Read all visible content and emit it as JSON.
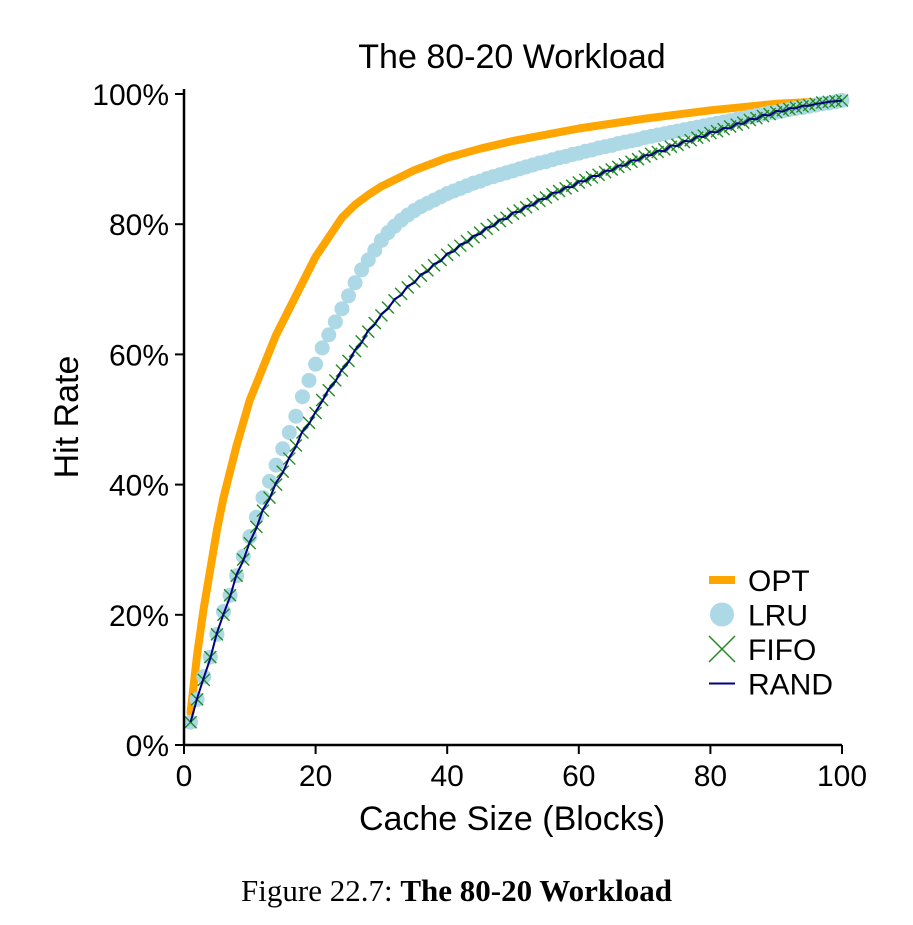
{
  "caption": {
    "prefix": "Figure 22.7:",
    "title": "The 80-20 Workload"
  },
  "colors": {
    "OPT": "#ffa500",
    "LRU": "#add8e6",
    "FIFO": "#228b22",
    "RAND": "#000080"
  },
  "chart_data": {
    "type": "line",
    "title": "The 80-20 Workload",
    "xlabel": "Cache Size (Blocks)",
    "ylabel": "Hit Rate",
    "xlim": [
      0,
      100
    ],
    "ylim": [
      0,
      100
    ],
    "x_ticks": [
      "0",
      "20",
      "40",
      "60",
      "80",
      "100"
    ],
    "y_ticks": [
      "0%",
      "20%",
      "40%",
      "60%",
      "80%",
      "100%"
    ],
    "legend_position": "bottom-right",
    "grid": false,
    "series": [
      {
        "name": "OPT",
        "marker": "line",
        "x": [
          1,
          2,
          3,
          4,
          5,
          6,
          8,
          10,
          12,
          14,
          16,
          18,
          20,
          22,
          24,
          26,
          28,
          30,
          35,
          40,
          45,
          50,
          60,
          70,
          80,
          90,
          100
        ],
        "y": [
          5,
          14,
          21,
          27,
          33,
          38,
          46,
          53,
          58,
          63,
          67,
          71,
          75,
          78,
          81,
          83,
          84.5,
          85.8,
          88.3,
          90.2,
          91.6,
          92.8,
          94.7,
          96.2,
          97.5,
          98.5,
          99
        ]
      },
      {
        "name": "LRU",
        "marker": "circle",
        "x": [
          1,
          2,
          3,
          4,
          5,
          6,
          7,
          8,
          9,
          10,
          11,
          12,
          13,
          14,
          15,
          16,
          17,
          18,
          19,
          20,
          21,
          22,
          23,
          24,
          25,
          26,
          27,
          28,
          29,
          30,
          31,
          32,
          33,
          34,
          35,
          36,
          37,
          38,
          39,
          40,
          41,
          42,
          43,
          44,
          45,
          46,
          47,
          48,
          49,
          50,
          51,
          52,
          53,
          54,
          55,
          56,
          57,
          58,
          59,
          60,
          61,
          62,
          63,
          64,
          65,
          66,
          67,
          68,
          69,
          70,
          71,
          72,
          73,
          74,
          75,
          76,
          77,
          78,
          79,
          80,
          81,
          82,
          83,
          84,
          85,
          86,
          87,
          88,
          89,
          90,
          91,
          92,
          93,
          94,
          95,
          96,
          97,
          98,
          99,
          100
        ],
        "y": [
          3.5,
          7,
          10.5,
          13.5,
          17,
          20.5,
          23,
          26,
          29,
          32,
          35,
          38,
          40.5,
          43,
          45.5,
          48,
          50.5,
          53.5,
          56,
          58.5,
          61,
          63,
          65,
          67,
          69,
          71,
          73,
          74.5,
          76,
          77.5,
          78.7,
          79.7,
          80.6,
          81.4,
          82.1,
          82.7,
          83.2,
          83.7,
          84.2,
          84.7,
          85.1,
          85.5,
          85.9,
          86.3,
          86.6,
          87,
          87.3,
          87.6,
          87.9,
          88.2,
          88.5,
          88.8,
          89.1,
          89.4,
          89.6,
          89.9,
          90.2,
          90.4,
          90.7,
          90.9,
          91.2,
          91.4,
          91.7,
          91.9,
          92.1,
          92.4,
          92.6,
          92.8,
          93,
          93.3,
          93.5,
          93.7,
          93.9,
          94.1,
          94.3,
          94.5,
          94.7,
          94.9,
          95.1,
          95.3,
          95.5,
          95.7,
          95.9,
          96.1,
          96.3,
          96.5,
          96.7,
          96.9,
          97.1,
          97.2,
          97.4,
          97.6,
          97.8,
          97.9,
          98.1,
          98.3,
          98.5,
          98.6,
          98.8,
          99
        ]
      },
      {
        "name": "FIFO",
        "marker": "x",
        "x": [
          1,
          2,
          3,
          4,
          5,
          6,
          7,
          8,
          9,
          10,
          11,
          12,
          13,
          14,
          15,
          16,
          17,
          18,
          19,
          20,
          21,
          22,
          23,
          24,
          25,
          26,
          27,
          28,
          29,
          30,
          31,
          32,
          33,
          34,
          35,
          36,
          37,
          38,
          39,
          40,
          41,
          42,
          43,
          44,
          45,
          46,
          47,
          48,
          49,
          50,
          51,
          52,
          53,
          54,
          55,
          56,
          57,
          58,
          59,
          60,
          61,
          62,
          63,
          64,
          65,
          66,
          67,
          68,
          69,
          70,
          71,
          72,
          73,
          74,
          75,
          76,
          77,
          78,
          79,
          80,
          81,
          82,
          83,
          84,
          85,
          86,
          87,
          88,
          89,
          90,
          91,
          92,
          93,
          94,
          95,
          96,
          97,
          98,
          99,
          100
        ],
        "y": [
          3.5,
          7,
          10,
          13.5,
          17,
          20,
          23,
          26,
          28.5,
          31,
          33.5,
          36,
          38,
          40,
          42,
          44,
          46,
          48,
          49.5,
          51,
          53,
          54.5,
          56,
          57.5,
          59,
          60.5,
          62,
          63.5,
          64.8,
          66,
          67.2,
          68.3,
          69.3,
          70.3,
          71.2,
          72.1,
          72.9,
          73.7,
          74.5,
          75.3,
          76,
          76.7,
          77.4,
          78,
          78.7,
          79.3,
          79.9,
          80.5,
          81,
          81.6,
          82.1,
          82.6,
          83.1,
          83.6,
          84.1,
          84.6,
          85.1,
          85.5,
          85.9,
          86.4,
          86.8,
          87.2,
          87.6,
          88,
          88.4,
          88.8,
          89.2,
          89.6,
          90,
          90.4,
          90.8,
          91.1,
          91.5,
          91.9,
          92.2,
          92.6,
          92.9,
          93.3,
          93.6,
          94,
          94.3,
          94.6,
          95,
          95.3,
          95.6,
          96,
          96.3,
          96.6,
          96.9,
          97.2,
          97.5,
          97.7,
          97.9,
          98.1,
          98.3,
          98.5,
          98.7,
          98.8,
          98.9,
          99
        ]
      },
      {
        "name": "RAND",
        "marker": "line",
        "x": [
          1,
          2,
          3,
          4,
          5,
          6,
          7,
          8,
          9,
          10,
          11,
          12,
          13,
          14,
          15,
          16,
          17,
          18,
          19,
          20,
          21,
          22,
          23,
          24,
          25,
          26,
          27,
          28,
          29,
          30,
          31,
          32,
          33,
          34,
          35,
          36,
          37,
          38,
          39,
          40,
          41,
          42,
          43,
          44,
          45,
          46,
          47,
          48,
          49,
          50,
          51,
          52,
          53,
          54,
          55,
          56,
          57,
          58,
          59,
          60,
          61,
          62,
          63,
          64,
          65,
          66,
          67,
          68,
          69,
          70,
          71,
          72,
          73,
          74,
          75,
          76,
          77,
          78,
          79,
          80,
          81,
          82,
          83,
          84,
          85,
          86,
          87,
          88,
          89,
          90,
          91,
          92,
          93,
          94,
          95,
          96,
          97,
          98,
          99,
          100
        ],
        "y": [
          3.5,
          7.2,
          10.3,
          13.3,
          17.2,
          20.1,
          22.8,
          26.2,
          28.3,
          31.2,
          33.3,
          36.2,
          37.8,
          40.3,
          41.8,
          44.2,
          45.8,
          48.2,
          49.3,
          51.2,
          52.8,
          54.7,
          55.8,
          57.7,
          58.8,
          60.7,
          61.8,
          63.7,
          64.6,
          66.2,
          67,
          68.5,
          69.1,
          70.5,
          71,
          72.3,
          72.7,
          73.9,
          74.3,
          75.5,
          75.8,
          76.9,
          77.2,
          78.2,
          78.5,
          79.5,
          79.7,
          80.7,
          80.8,
          81.8,
          81.9,
          82.8,
          82.9,
          83.8,
          83.9,
          84.8,
          84.9,
          85.7,
          85.7,
          86.6,
          86.6,
          87.4,
          87.4,
          88.2,
          88.2,
          89,
          89,
          89.8,
          89.8,
          90.6,
          90.6,
          91.3,
          91.2,
          92.1,
          92,
          92.8,
          92.7,
          93.5,
          93.4,
          94.2,
          94.1,
          94.8,
          94.7,
          95.5,
          95.4,
          96.2,
          96.1,
          96.8,
          96.7,
          97.4,
          97.3,
          97.8,
          97.8,
          98.2,
          98.2,
          98.5,
          98.6,
          98.8,
          98.9,
          99
        ]
      }
    ]
  }
}
